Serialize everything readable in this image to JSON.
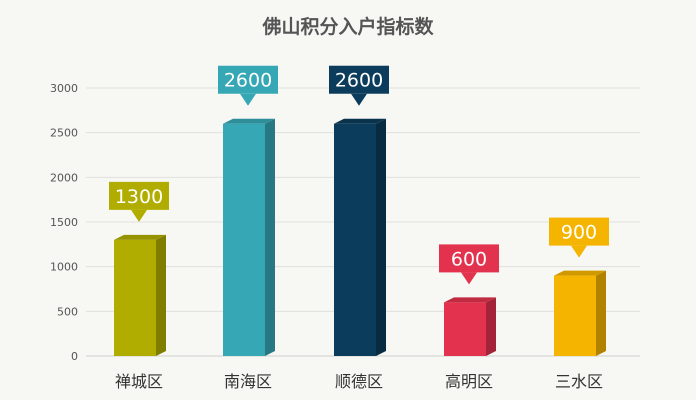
{
  "chart_data": {
    "type": "bar",
    "title": "佛山积分入户指标数",
    "xlabel": "",
    "ylabel": "",
    "categories": [
      "禅城区",
      "南海区",
      "顺德区",
      "高明区",
      "三水区"
    ],
    "values": [
      1300,
      2600,
      2600,
      600,
      900
    ],
    "colors": [
      "#b1ad00",
      "#36a7b4",
      "#0c3c5c",
      "#e2324e",
      "#f5b400"
    ],
    "ylim": [
      0,
      3000
    ],
    "yticks": [
      0,
      500,
      1000,
      1500,
      2000,
      2500,
      3000
    ],
    "grid": true,
    "legend": "none",
    "data_labels": "callout-above-bar"
  }
}
